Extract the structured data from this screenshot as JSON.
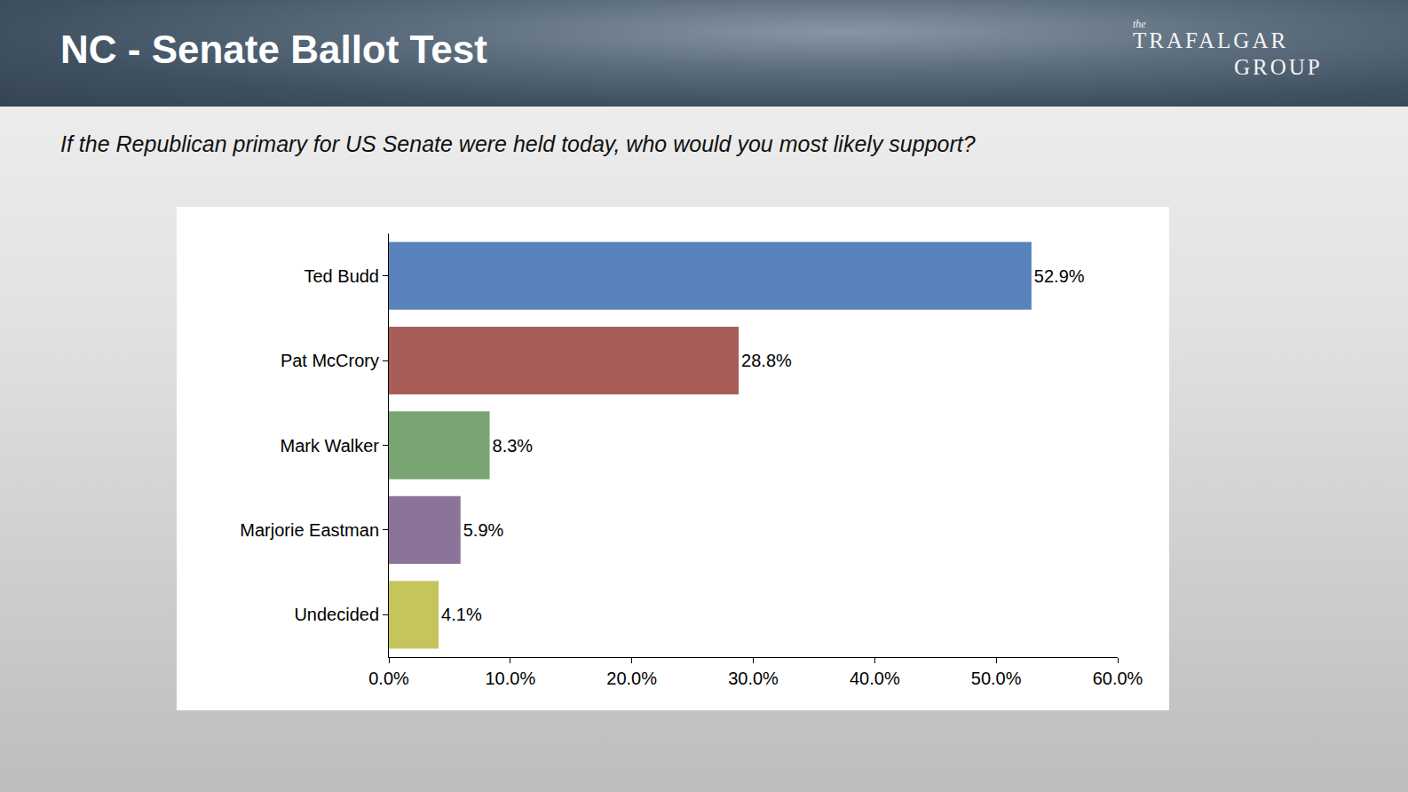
{
  "logo": {
    "small": "the",
    "line1": "TRAFALGAR",
    "line2": "GROUP"
  },
  "chart_data": {
    "type": "bar",
    "title": "NC - Senate Ballot Test",
    "subtitle": "If the Republican primary for US Senate were held today, who would you most likely support?",
    "orientation": "horizontal",
    "categories": [
      "Ted Budd",
      "Pat McCrory",
      "Mark Walker",
      "Marjorie Eastman",
      "Undecided"
    ],
    "values": [
      52.9,
      28.8,
      8.3,
      5.9,
      4.1
    ],
    "value_labels": [
      "52.9%",
      "28.8%",
      "8.3%",
      "5.9%",
      "4.1%"
    ],
    "colors": [
      "#5882bb",
      "#a85d59",
      "#7ba474",
      "#8b7399",
      "#c4c65c"
    ],
    "data_labels": true,
    "xlim": [
      0,
      60
    ],
    "xticks": [
      {
        "value": 0,
        "label": "0.0%"
      },
      {
        "value": 10,
        "label": "10.0%"
      },
      {
        "value": 20,
        "label": "20.0%"
      },
      {
        "value": 30,
        "label": "30.0%"
      },
      {
        "value": 40,
        "label": "40.0%"
      },
      {
        "value": 50,
        "label": "50.0%"
      },
      {
        "value": 60,
        "label": "60.0%"
      }
    ],
    "grid": false
  }
}
